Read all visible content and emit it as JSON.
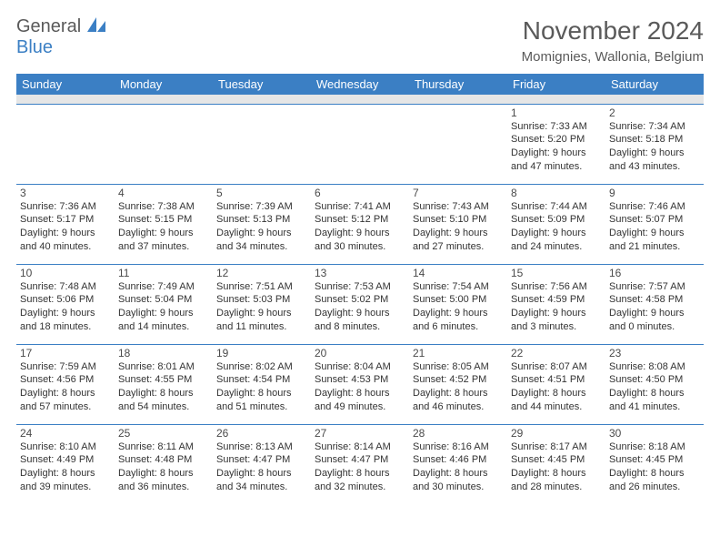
{
  "logo": {
    "text1": "General",
    "text2": "Blue"
  },
  "title": "November 2024",
  "location": "Momignies, Wallonia, Belgium",
  "colors": {
    "header_bg": "#3b7fc4",
    "header_fg": "#ffffff",
    "border": "#3b7fc4",
    "spacer_bg": "#e6e6e6",
    "text": "#333333",
    "title_color": "#5a5a5a"
  },
  "columns": [
    "Sunday",
    "Monday",
    "Tuesday",
    "Wednesday",
    "Thursday",
    "Friday",
    "Saturday"
  ],
  "weeks": [
    [
      null,
      null,
      null,
      null,
      null,
      {
        "n": "1",
        "sunrise": "7:33 AM",
        "sunset": "5:20 PM",
        "daylight": "9 hours and 47 minutes."
      },
      {
        "n": "2",
        "sunrise": "7:34 AM",
        "sunset": "5:18 PM",
        "daylight": "9 hours and 43 minutes."
      }
    ],
    [
      {
        "n": "3",
        "sunrise": "7:36 AM",
        "sunset": "5:17 PM",
        "daylight": "9 hours and 40 minutes."
      },
      {
        "n": "4",
        "sunrise": "7:38 AM",
        "sunset": "5:15 PM",
        "daylight": "9 hours and 37 minutes."
      },
      {
        "n": "5",
        "sunrise": "7:39 AM",
        "sunset": "5:13 PM",
        "daylight": "9 hours and 34 minutes."
      },
      {
        "n": "6",
        "sunrise": "7:41 AM",
        "sunset": "5:12 PM",
        "daylight": "9 hours and 30 minutes."
      },
      {
        "n": "7",
        "sunrise": "7:43 AM",
        "sunset": "5:10 PM",
        "daylight": "9 hours and 27 minutes."
      },
      {
        "n": "8",
        "sunrise": "7:44 AM",
        "sunset": "5:09 PM",
        "daylight": "9 hours and 24 minutes."
      },
      {
        "n": "9",
        "sunrise": "7:46 AM",
        "sunset": "5:07 PM",
        "daylight": "9 hours and 21 minutes."
      }
    ],
    [
      {
        "n": "10",
        "sunrise": "7:48 AM",
        "sunset": "5:06 PM",
        "daylight": "9 hours and 18 minutes."
      },
      {
        "n": "11",
        "sunrise": "7:49 AM",
        "sunset": "5:04 PM",
        "daylight": "9 hours and 14 minutes."
      },
      {
        "n": "12",
        "sunrise": "7:51 AM",
        "sunset": "5:03 PM",
        "daylight": "9 hours and 11 minutes."
      },
      {
        "n": "13",
        "sunrise": "7:53 AM",
        "sunset": "5:02 PM",
        "daylight": "9 hours and 8 minutes."
      },
      {
        "n": "14",
        "sunrise": "7:54 AM",
        "sunset": "5:00 PM",
        "daylight": "9 hours and 6 minutes."
      },
      {
        "n": "15",
        "sunrise": "7:56 AM",
        "sunset": "4:59 PM",
        "daylight": "9 hours and 3 minutes."
      },
      {
        "n": "16",
        "sunrise": "7:57 AM",
        "sunset": "4:58 PM",
        "daylight": "9 hours and 0 minutes."
      }
    ],
    [
      {
        "n": "17",
        "sunrise": "7:59 AM",
        "sunset": "4:56 PM",
        "daylight": "8 hours and 57 minutes."
      },
      {
        "n": "18",
        "sunrise": "8:01 AM",
        "sunset": "4:55 PM",
        "daylight": "8 hours and 54 minutes."
      },
      {
        "n": "19",
        "sunrise": "8:02 AM",
        "sunset": "4:54 PM",
        "daylight": "8 hours and 51 minutes."
      },
      {
        "n": "20",
        "sunrise": "8:04 AM",
        "sunset": "4:53 PM",
        "daylight": "8 hours and 49 minutes."
      },
      {
        "n": "21",
        "sunrise": "8:05 AM",
        "sunset": "4:52 PM",
        "daylight": "8 hours and 46 minutes."
      },
      {
        "n": "22",
        "sunrise": "8:07 AM",
        "sunset": "4:51 PM",
        "daylight": "8 hours and 44 minutes."
      },
      {
        "n": "23",
        "sunrise": "8:08 AM",
        "sunset": "4:50 PM",
        "daylight": "8 hours and 41 minutes."
      }
    ],
    [
      {
        "n": "24",
        "sunrise": "8:10 AM",
        "sunset": "4:49 PM",
        "daylight": "8 hours and 39 minutes."
      },
      {
        "n": "25",
        "sunrise": "8:11 AM",
        "sunset": "4:48 PM",
        "daylight": "8 hours and 36 minutes."
      },
      {
        "n": "26",
        "sunrise": "8:13 AM",
        "sunset": "4:47 PM",
        "daylight": "8 hours and 34 minutes."
      },
      {
        "n": "27",
        "sunrise": "8:14 AM",
        "sunset": "4:47 PM",
        "daylight": "8 hours and 32 minutes."
      },
      {
        "n": "28",
        "sunrise": "8:16 AM",
        "sunset": "4:46 PM",
        "daylight": "8 hours and 30 minutes."
      },
      {
        "n": "29",
        "sunrise": "8:17 AM",
        "sunset": "4:45 PM",
        "daylight": "8 hours and 28 minutes."
      },
      {
        "n": "30",
        "sunrise": "8:18 AM",
        "sunset": "4:45 PM",
        "daylight": "8 hours and 26 minutes."
      }
    ]
  ],
  "labels": {
    "sunrise": "Sunrise: ",
    "sunset": "Sunset: ",
    "daylight": "Daylight: "
  }
}
